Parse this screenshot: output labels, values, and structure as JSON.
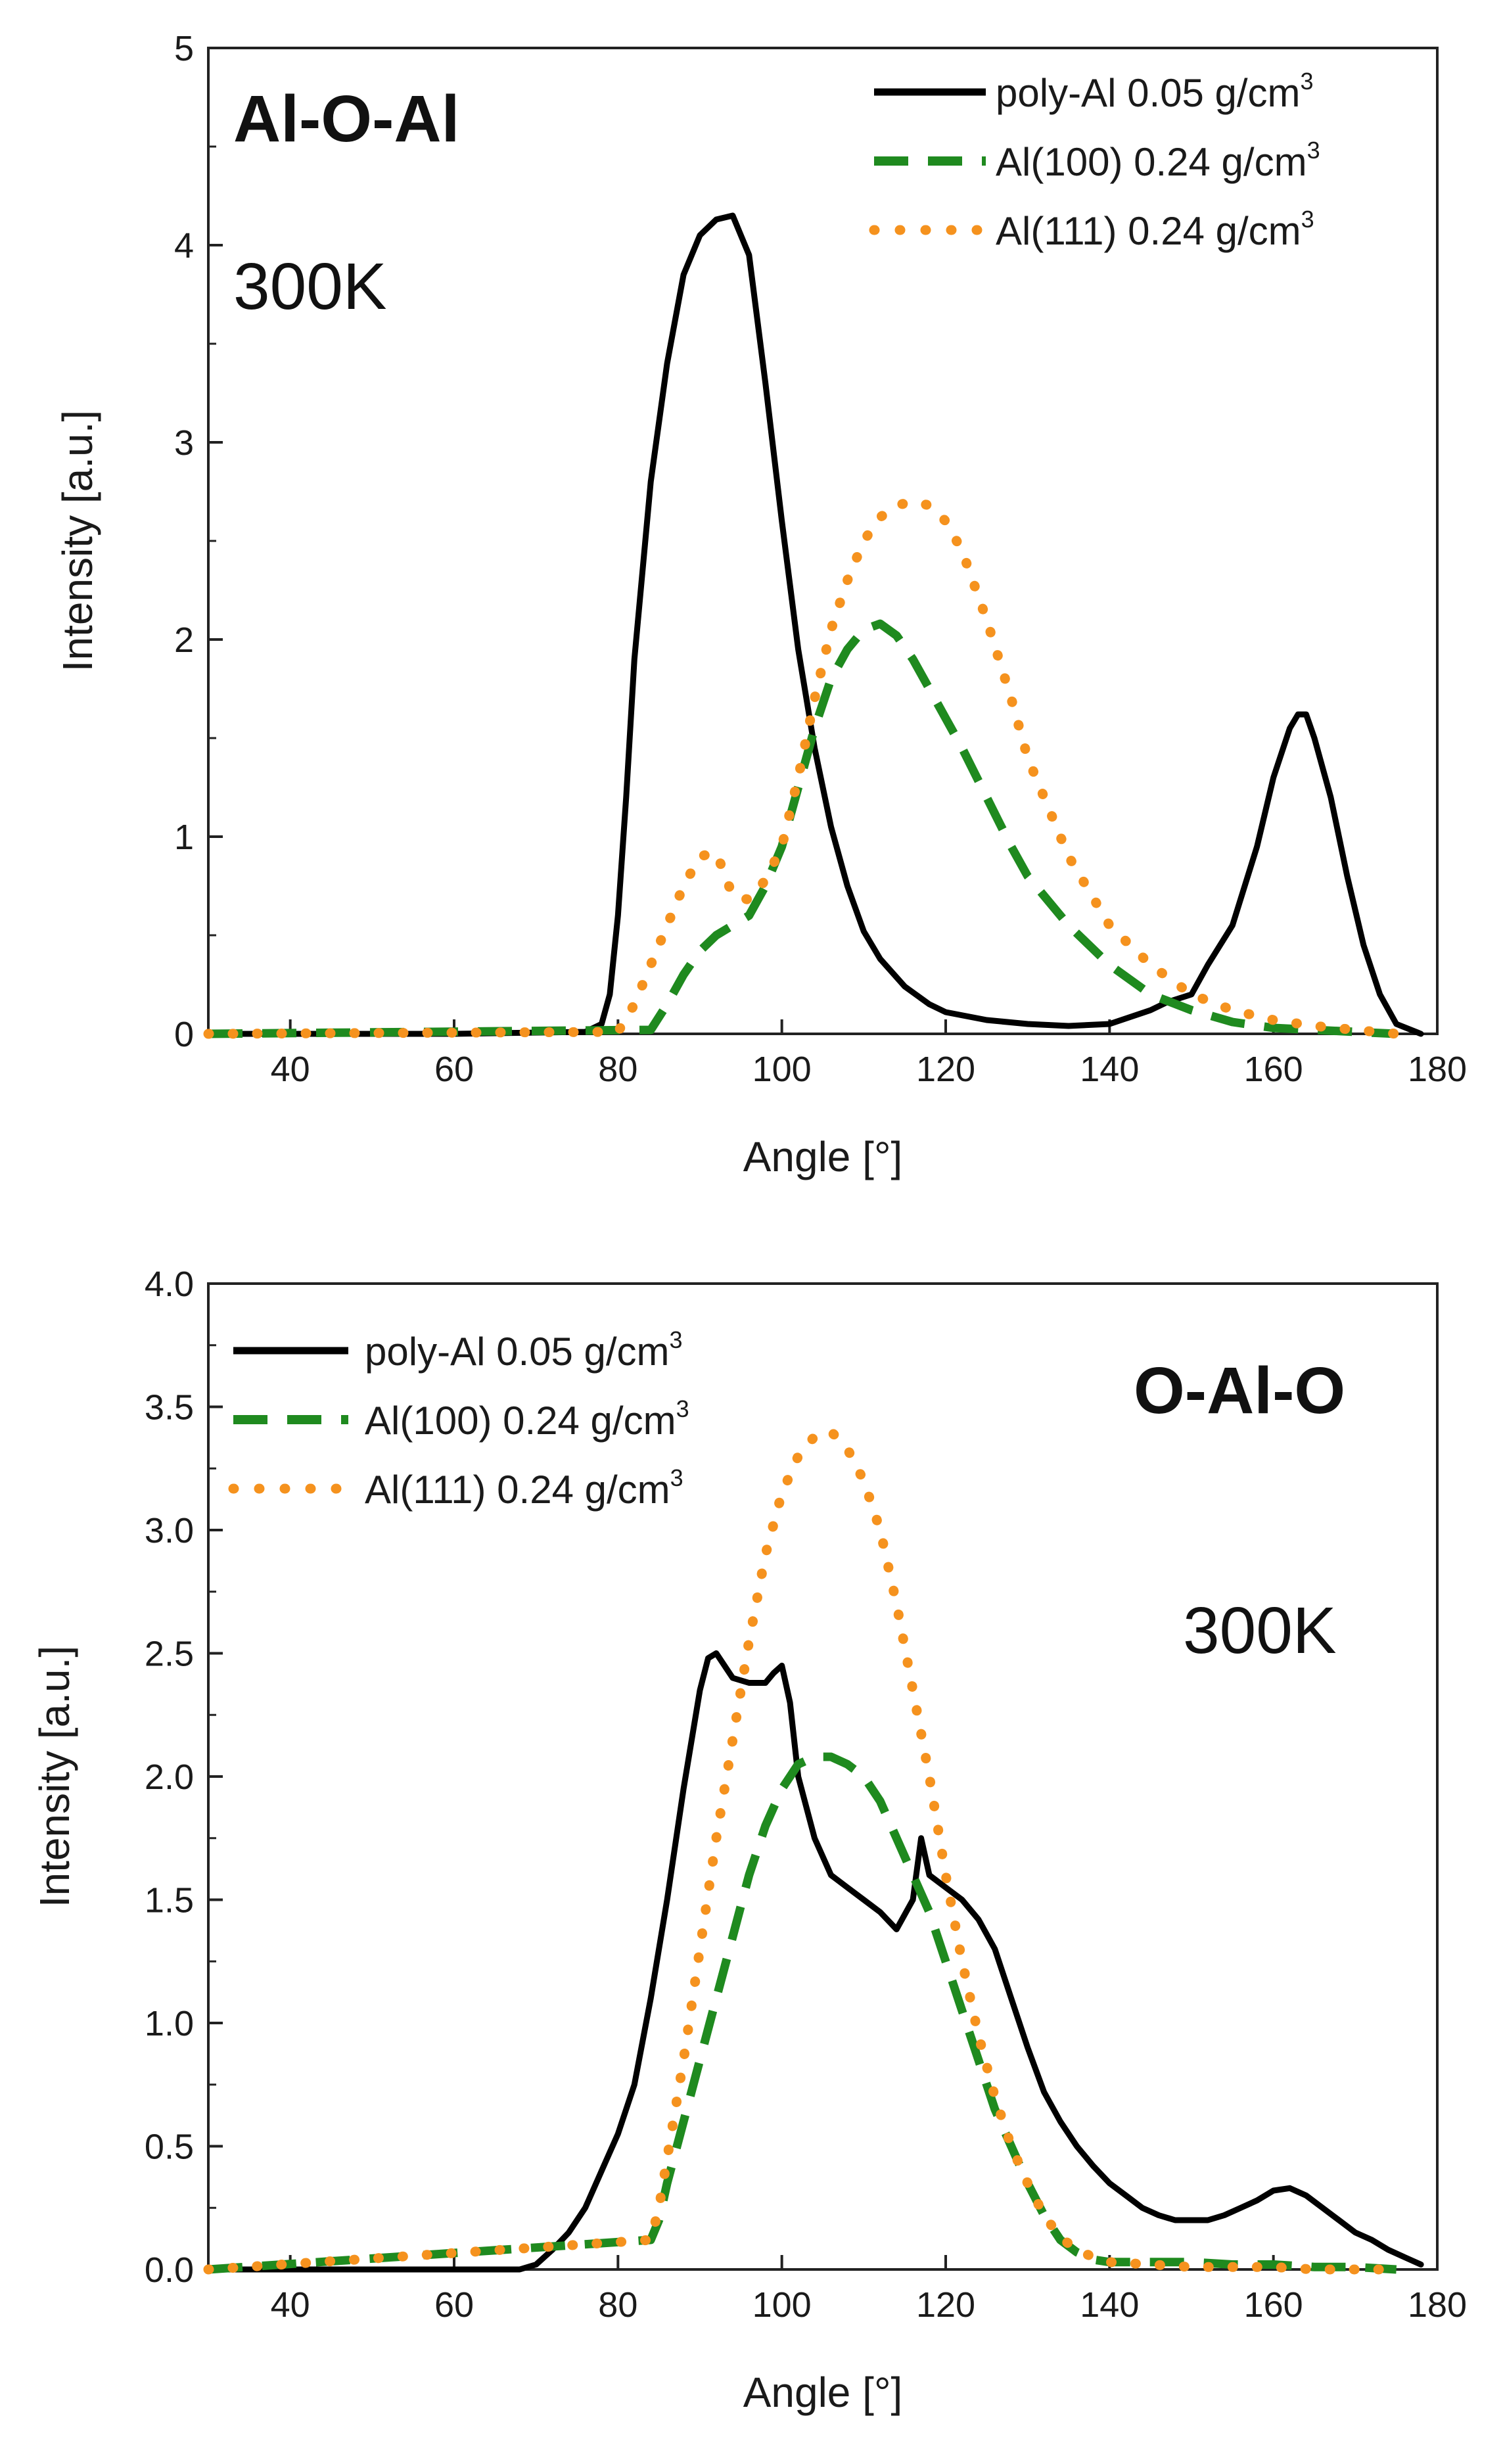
{
  "colors": {
    "poly": "#000000",
    "al100": "#1f8a1f",
    "al111": "#f5921e"
  },
  "chart_data": [
    {
      "type": "line",
      "title": "",
      "xlabel": "Angle [°]",
      "ylabel": "Intensity [a.u.]",
      "xlim": [
        30,
        180
      ],
      "ylim": [
        0,
        5
      ],
      "xticks": [
        "40",
        "60",
        "80",
        "100",
        "120",
        "140",
        "160",
        "180"
      ],
      "yticks": [
        "0",
        "1",
        "2",
        "3",
        "4",
        "5"
      ],
      "annotations": {
        "bond": "Al-O-Al",
        "temperature": "300K"
      },
      "legend_position": "top-right",
      "series": [
        {
          "name": "poly-Al 0.05 g/cm3",
          "label": "poly-Al 0.05 g/cm",
          "sup": "3",
          "style": "solid",
          "color_key": "poly",
          "x": [
            30,
            60,
            76,
            78,
            79,
            80,
            81,
            82,
            84,
            86,
            88,
            90,
            92,
            94,
            96,
            98,
            100,
            102,
            104,
            106,
            108,
            110,
            112,
            115,
            118,
            120,
            125,
            130,
            135,
            140,
            145,
            147,
            150,
            152,
            155,
            158,
            160,
            162,
            163,
            164,
            165,
            167,
            169,
            171,
            173,
            175,
            178
          ],
          "y": [
            0,
            0,
            0.01,
            0.05,
            0.2,
            0.6,
            1.2,
            1.9,
            2.8,
            3.4,
            3.85,
            4.05,
            4.13,
            4.15,
            3.95,
            3.3,
            2.6,
            1.95,
            1.45,
            1.05,
            0.75,
            0.52,
            0.38,
            0.24,
            0.15,
            0.11,
            0.07,
            0.05,
            0.04,
            0.05,
            0.12,
            0.16,
            0.2,
            0.35,
            0.55,
            0.95,
            1.3,
            1.55,
            1.62,
            1.62,
            1.5,
            1.2,
            0.8,
            0.45,
            0.2,
            0.05,
            0
          ]
        },
        {
          "name": "Al(100) 0.24 g/cm3",
          "label": "Al(100) 0.24 g/cm",
          "sup": "3",
          "style": "dashed",
          "color_key": "al100",
          "x": [
            30,
            84,
            86,
            88,
            90,
            92,
            94,
            96,
            98,
            100,
            102,
            104,
            106,
            108,
            110,
            112,
            114,
            116,
            118,
            120,
            122,
            125,
            128,
            130,
            135,
            140,
            145,
            150,
            155,
            160,
            165,
            170,
            175
          ],
          "y": [
            0,
            0.02,
            0.15,
            0.3,
            0.42,
            0.5,
            0.55,
            0.6,
            0.75,
            0.95,
            1.25,
            1.55,
            1.8,
            1.95,
            2.05,
            2.08,
            2.02,
            1.9,
            1.75,
            1.6,
            1.45,
            1.2,
            0.95,
            0.8,
            0.55,
            0.35,
            0.2,
            0.12,
            0.06,
            0.03,
            0.02,
            0.01,
            0
          ]
        },
        {
          "name": "Al(111) 0.24 g/cm3",
          "label": "Al(111) 0.24 g/cm",
          "sup": "3",
          "style": "dotted",
          "color_key": "al111",
          "x": [
            30,
            80,
            82,
            84,
            86,
            88,
            90,
            92,
            94,
            96,
            98,
            100,
            102,
            104,
            106,
            108,
            110,
            112,
            114,
            116,
            118,
            120,
            122,
            125,
            128,
            130,
            135,
            140,
            145,
            150,
            155,
            160,
            165,
            170,
            175
          ],
          "y": [
            0,
            0.01,
            0.15,
            0.35,
            0.55,
            0.75,
            0.9,
            0.92,
            0.7,
            0.68,
            0.78,
            0.95,
            1.3,
            1.7,
            2.05,
            2.3,
            2.5,
            2.62,
            2.68,
            2.7,
            2.68,
            2.6,
            2.45,
            2.1,
            1.7,
            1.4,
            0.9,
            0.55,
            0.35,
            0.2,
            0.12,
            0.07,
            0.04,
            0.02,
            0
          ]
        }
      ]
    },
    {
      "type": "line",
      "title": "",
      "xlabel": "Angle [°]",
      "ylabel": "Intensity [a.u.]",
      "xlim": [
        30,
        180
      ],
      "ylim": [
        0,
        4
      ],
      "xticks": [
        "40",
        "60",
        "80",
        "100",
        "120",
        "140",
        "160",
        "180"
      ],
      "yticks": [
        "0.0",
        "0.5",
        "1.0",
        "1.5",
        "2.0",
        "2.5",
        "3.0",
        "3.5",
        "4.0"
      ],
      "annotations": {
        "bond": "O-Al-O",
        "temperature": "300K"
      },
      "legend_position": "top-left",
      "series": [
        {
          "name": "poly-Al 0.05 g/cm3",
          "label": "poly-Al 0.05 g/cm",
          "sup": "3",
          "style": "solid",
          "color_key": "poly",
          "x": [
            30,
            68,
            70,
            72,
            74,
            76,
            78,
            80,
            82,
            84,
            86,
            88,
            90,
            91,
            92,
            93,
            94,
            96,
            98,
            99,
            100,
            101,
            102,
            104,
            106,
            108,
            110,
            112,
            114,
            116,
            117,
            118,
            120,
            122,
            124,
            126,
            128,
            130,
            132,
            134,
            136,
            138,
            140,
            142,
            144,
            146,
            148,
            150,
            152,
            154,
            156,
            158,
            160,
            162,
            164,
            166,
            168,
            170,
            172,
            174,
            176,
            178
          ],
          "y": [
            0,
            0,
            0.02,
            0.08,
            0.15,
            0.25,
            0.4,
            0.55,
            0.75,
            1.1,
            1.5,
            1.95,
            2.35,
            2.48,
            2.5,
            2.45,
            2.4,
            2.38,
            2.38,
            2.42,
            2.45,
            2.3,
            2.0,
            1.75,
            1.6,
            1.55,
            1.5,
            1.45,
            1.38,
            1.5,
            1.75,
            1.6,
            1.55,
            1.5,
            1.42,
            1.3,
            1.1,
            0.9,
            0.72,
            0.6,
            0.5,
            0.42,
            0.35,
            0.3,
            0.25,
            0.22,
            0.2,
            0.2,
            0.2,
            0.22,
            0.25,
            0.28,
            0.32,
            0.33,
            0.3,
            0.25,
            0.2,
            0.15,
            0.12,
            0.08,
            0.05,
            0.02
          ]
        },
        {
          "name": "Al(100) 0.24 g/cm3",
          "label": "Al(100) 0.24 g/cm",
          "sup": "3",
          "style": "dashed",
          "color_key": "al100",
          "x": [
            30,
            84,
            85,
            86,
            88,
            90,
            92,
            94,
            96,
            98,
            100,
            102,
            104,
            106,
            108,
            110,
            112,
            114,
            116,
            118,
            120,
            122,
            124,
            126,
            128,
            130,
            132,
            134,
            136,
            138,
            140,
            145,
            150,
            155,
            160,
            165,
            170,
            175
          ],
          "y": [
            0,
            0.12,
            0.2,
            0.35,
            0.6,
            0.85,
            1.1,
            1.35,
            1.6,
            1.8,
            1.95,
            2.05,
            2.08,
            2.08,
            2.05,
            2.0,
            1.9,
            1.75,
            1.6,
            1.45,
            1.25,
            1.05,
            0.85,
            0.65,
            0.5,
            0.35,
            0.22,
            0.12,
            0.07,
            0.04,
            0.03,
            0.03,
            0.03,
            0.02,
            0.02,
            0.01,
            0.01,
            0
          ]
        },
        {
          "name": "Al(111) 0.24 g/cm3",
          "label": "Al(111) 0.24 g/cm",
          "sup": "3",
          "style": "dotted",
          "color_key": "al111",
          "x": [
            30,
            84,
            85,
            86,
            88,
            90,
            92,
            94,
            96,
            98,
            100,
            102,
            104,
            106,
            108,
            110,
            112,
            114,
            116,
            118,
            120,
            122,
            124,
            126,
            128,
            130,
            132,
            134,
            136,
            138,
            140,
            145,
            150,
            155,
            160,
            165,
            170,
            175
          ],
          "y": [
            0,
            0.12,
            0.25,
            0.45,
            0.85,
            1.3,
            1.75,
            2.15,
            2.55,
            2.9,
            3.15,
            3.3,
            3.38,
            3.4,
            3.33,
            3.2,
            3.0,
            2.7,
            2.35,
            2.0,
            1.6,
            1.25,
            0.95,
            0.7,
            0.5,
            0.35,
            0.22,
            0.13,
            0.08,
            0.05,
            0.03,
            0.02,
            0.01,
            0.01,
            0.01,
            0,
            0,
            0
          ]
        }
      ]
    }
  ]
}
